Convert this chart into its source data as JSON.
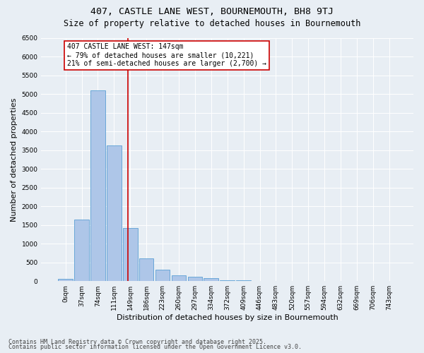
{
  "title1": "407, CASTLE LANE WEST, BOURNEMOUTH, BH8 9TJ",
  "title2": "Size of property relative to detached houses in Bournemouth",
  "xlabel": "Distribution of detached houses by size in Bournemouth",
  "ylabel": "Number of detached properties",
  "categories": [
    "0sqm",
    "37sqm",
    "74sqm",
    "111sqm",
    "149sqm",
    "186sqm",
    "223sqm",
    "260sqm",
    "297sqm",
    "334sqm",
    "372sqm",
    "409sqm",
    "446sqm",
    "483sqm",
    "520sqm",
    "557sqm",
    "594sqm",
    "632sqm",
    "669sqm",
    "706sqm",
    "743sqm"
  ],
  "values": [
    60,
    1650,
    5100,
    3620,
    1420,
    600,
    310,
    160,
    110,
    80,
    30,
    20,
    0,
    0,
    0,
    0,
    0,
    0,
    0,
    0,
    0
  ],
  "bar_color": "#aec6e8",
  "bar_edge_color": "#5a9fd4",
  "vline_x": 3.87,
  "vline_color": "#cc0000",
  "annotation_text": "407 CASTLE LANE WEST: 147sqm\n← 79% of detached houses are smaller (10,221)\n21% of semi-detached houses are larger (2,700) →",
  "annotation_box_color": "#ffffff",
  "annotation_border_color": "#cc0000",
  "ylim": [
    0,
    6500
  ],
  "yticks": [
    0,
    500,
    1000,
    1500,
    2000,
    2500,
    3000,
    3500,
    4000,
    4500,
    5000,
    5500,
    6000,
    6500
  ],
  "bg_color": "#e8eef4",
  "plot_bg_color": "#e8eef4",
  "footer1": "Contains HM Land Registry data © Crown copyright and database right 2025.",
  "footer2": "Contains public sector information licensed under the Open Government Licence v3.0.",
  "title_fontsize": 9.5,
  "subtitle_fontsize": 8.5,
  "axis_label_fontsize": 8,
  "tick_fontsize": 6.5,
  "annotation_fontsize": 7,
  "footer_fontsize": 6
}
